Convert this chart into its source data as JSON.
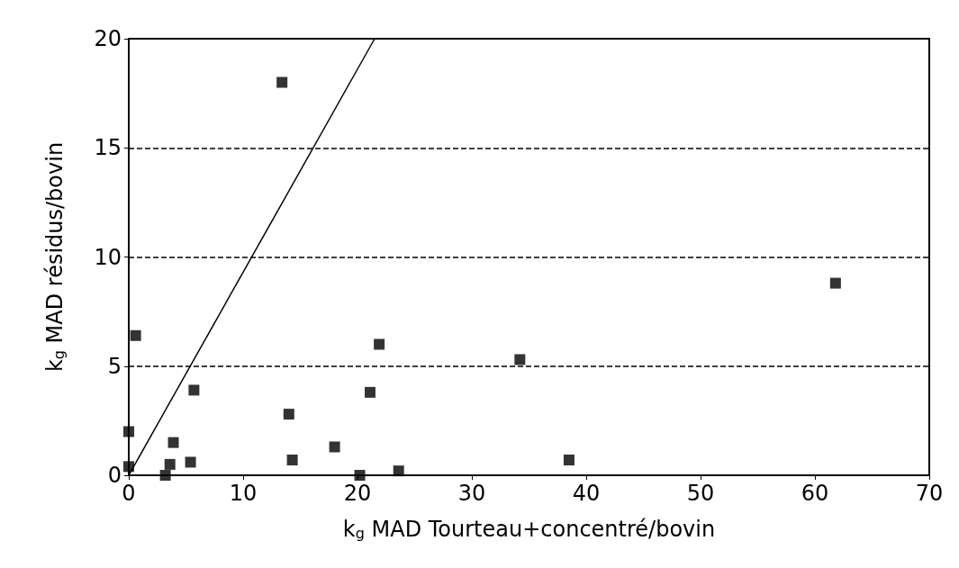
{
  "chart_data": {
    "type": "scatter",
    "xlabel": "k$_{g}$ MAD Tourteau+concentré/bovin",
    "ylabel": "k$_{g}$ MAD résidus/bovin",
    "xlim": [
      0,
      70
    ],
    "xticks": [
      0,
      10,
      20,
      30,
      40,
      50,
      60,
      70
    ],
    "ylim": [
      0,
      20
    ],
    "yticks": [
      0,
      5,
      10,
      15,
      20
    ],
    "grid": "y",
    "marker": "square",
    "series": [
      {
        "color": "#000000",
        "x": [
          0,
          0,
          0.6,
          3.2,
          3.6,
          3.9,
          5.4,
          5.7,
          13.4,
          14,
          14.3,
          18,
          20.2,
          21.1,
          21.9,
          23.6,
          34.2,
          38.5,
          61.8
        ],
        "values": [
          0.4,
          2,
          6.4,
          0,
          0.5,
          1.5,
          0.6,
          3.9,
          18,
          2.8,
          0.7,
          1.3,
          0,
          3.8,
          6,
          0.2,
          5.3,
          0.7,
          8.8
        ]
      },
      {
        "type": "line",
        "color": "#000000",
        "marker": "none",
        "line_style": "solid",
        "x": [
          0,
          21.5
        ],
        "values": [
          0,
          20
        ]
      }
    ]
  }
}
